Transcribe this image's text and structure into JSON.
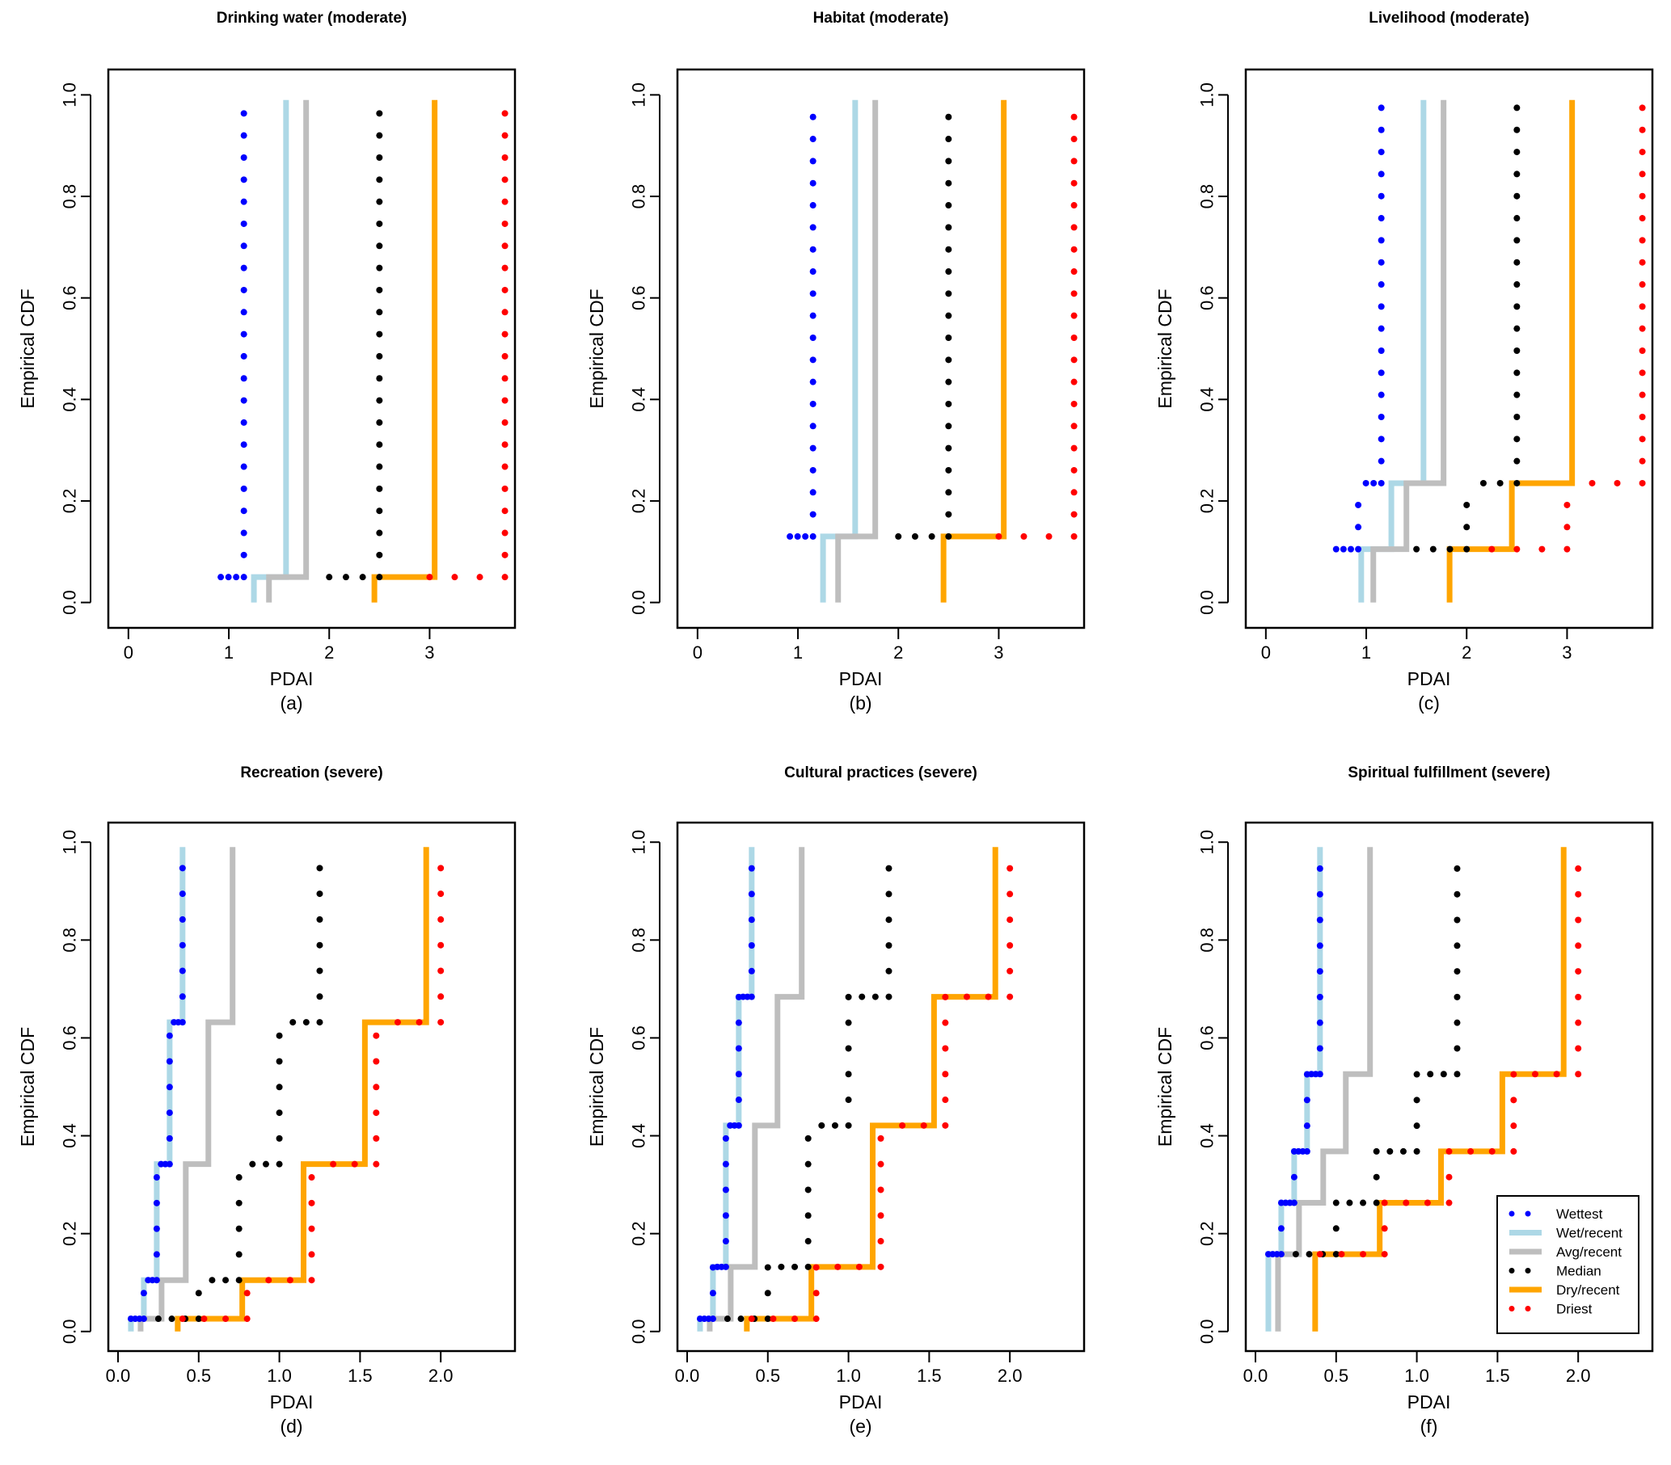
{
  "chart_data": {
    "type": "line",
    "subtype": "step-ecdf-multi-panel",
    "legend": {
      "placement": "bottom-right of panel (f)",
      "entries": [
        {
          "name": "Wettest",
          "style": "dotted",
          "color": "#0000ff"
        },
        {
          "name": "Wet/recent",
          "style": "solid",
          "color": "#add8e6"
        },
        {
          "name": "Avg/recent",
          "style": "solid",
          "color": "#bebebe"
        },
        {
          "name": "Median",
          "style": "dotted",
          "color": "#000000"
        },
        {
          "name": "Dry/recent",
          "style": "solid",
          "color": "#ffa500"
        },
        {
          "name": "Driest",
          "style": "dotted",
          "color": "#ff0000"
        }
      ]
    },
    "panels": [
      {
        "id": "a",
        "title": "Drinking water (moderate)",
        "label": "(a)",
        "xlabel": "PDAI",
        "ylabel": "Empirical CDF",
        "xlim": [
          -0.2,
          3.85
        ],
        "ylim": [
          -0.05,
          1.05
        ],
        "xticks": [
          "0",
          "1",
          "2",
          "3"
        ],
        "xtick_values": [
          0,
          1,
          2,
          3
        ],
        "yticks": [
          "0.0",
          "0.2",
          "0.4",
          "0.6",
          "0.8",
          "1.0"
        ],
        "ytick_values": [
          0,
          0.2,
          0.4,
          0.6,
          0.8,
          1.0
        ],
        "series": {
          "Wettest": [
            [
              0.92,
              0.05
            ],
            [
              1.15,
              1.0
            ]
          ],
          "Wet/recent": [
            [
              1.25,
              0.05
            ],
            [
              1.57,
              1.0
            ]
          ],
          "Avg/recent": [
            [
              1.4,
              0.05
            ],
            [
              1.77,
              1.0
            ]
          ],
          "Median": [
            [
              2.0,
              0.05
            ],
            [
              2.5,
              1.0
            ]
          ],
          "Dry/recent": [
            [
              2.45,
              0.05
            ],
            [
              3.05,
              1.0
            ]
          ],
          "Driest": [
            [
              3.0,
              0.05
            ],
            [
              3.75,
              1.0
            ]
          ]
        }
      },
      {
        "id": "b",
        "title": "Habitat (moderate)",
        "label": "(b)",
        "xlabel": "PDAI",
        "ylabel": "Empirical CDF",
        "xlim": [
          -0.2,
          3.85
        ],
        "ylim": [
          -0.05,
          1.05
        ],
        "xticks": [
          "0",
          "1",
          "2",
          "3"
        ],
        "xtick_values": [
          0,
          1,
          2,
          3
        ],
        "yticks": [
          "0.0",
          "0.2",
          "0.4",
          "0.6",
          "0.8",
          "1.0"
        ],
        "ytick_values": [
          0,
          0.2,
          0.4,
          0.6,
          0.8,
          1.0
        ],
        "series": {
          "Wettest": [
            [
              0.92,
              0.13
            ],
            [
              1.15,
              1.0
            ]
          ],
          "Wet/recent": [
            [
              1.25,
              0.13
            ],
            [
              1.57,
              1.0
            ]
          ],
          "Avg/recent": [
            [
              1.4,
              0.13
            ],
            [
              1.77,
              1.0
            ]
          ],
          "Median": [
            [
              2.0,
              0.13
            ],
            [
              2.5,
              1.0
            ]
          ],
          "Dry/recent": [
            [
              2.45,
              0.13
            ],
            [
              3.05,
              1.0
            ]
          ],
          "Driest": [
            [
              3.0,
              0.13
            ],
            [
              3.75,
              1.0
            ]
          ]
        }
      },
      {
        "id": "c",
        "title": "Livelihood (moderate)",
        "label": "(c)",
        "xlabel": "PDAI",
        "ylabel": "Empirical CDF",
        "xlim": [
          -0.2,
          3.85
        ],
        "ylim": [
          -0.05,
          1.05
        ],
        "xticks": [
          "0",
          "1",
          "2",
          "3"
        ],
        "xtick_values": [
          0,
          1,
          2,
          3
        ],
        "yticks": [
          "0.0",
          "0.2",
          "0.4",
          "0.6",
          "0.8",
          "1.0"
        ],
        "ytick_values": [
          0,
          0.2,
          0.4,
          0.6,
          0.8,
          1.0
        ],
        "series": {
          "Wettest": [
            [
              0.7,
              0.105
            ],
            [
              0.92,
              0.235
            ],
            [
              1.15,
              1.0
            ]
          ],
          "Wet/recent": [
            [
              0.95,
              0.105
            ],
            [
              1.25,
              0.235
            ],
            [
              1.57,
              1.0
            ]
          ],
          "Avg/recent": [
            [
              1.07,
              0.105
            ],
            [
              1.4,
              0.235
            ],
            [
              1.77,
              1.0
            ]
          ],
          "Median": [
            [
              1.5,
              0.105
            ],
            [
              2.0,
              0.235
            ],
            [
              2.5,
              1.0
            ]
          ],
          "Dry/recent": [
            [
              1.83,
              0.105
            ],
            [
              2.45,
              0.235
            ],
            [
              3.05,
              1.0
            ]
          ],
          "Driest": [
            [
              2.25,
              0.105
            ],
            [
              3.0,
              0.235
            ],
            [
              3.75,
              1.0
            ]
          ]
        }
      },
      {
        "id": "d",
        "title": "Recreation (severe)",
        "label": "(d)",
        "xlabel": "PDAI",
        "ylabel": "Empirical CDF",
        "xlim": [
          -0.06,
          2.46
        ],
        "ylim": [
          -0.04,
          1.04
        ],
        "xticks": [
          "0.0",
          "0.5",
          "1.0",
          "1.5",
          "2.0"
        ],
        "xtick_values": [
          0,
          0.5,
          1.0,
          1.5,
          2.0
        ],
        "yticks": [
          "0.0",
          "0.2",
          "0.4",
          "0.6",
          "0.8",
          "1.0"
        ],
        "ytick_values": [
          0,
          0.2,
          0.4,
          0.6,
          0.8,
          1.0
        ],
        "series": {
          "Wettest": [
            [
              0.08,
              0.026
            ],
            [
              0.16,
              0.105
            ],
            [
              0.24,
              0.342
            ],
            [
              0.32,
              0.632
            ],
            [
              0.4,
              1.0
            ]
          ],
          "Wet/recent": [
            [
              0.08,
              0.026
            ],
            [
              0.16,
              0.105
            ],
            [
              0.24,
              0.342
            ],
            [
              0.32,
              0.632
            ],
            [
              0.4,
              1.0
            ]
          ],
          "Avg/recent": [
            [
              0.14,
              0.026
            ],
            [
              0.27,
              0.105
            ],
            [
              0.42,
              0.342
            ],
            [
              0.56,
              0.632
            ],
            [
              0.71,
              1.0
            ]
          ],
          "Median": [
            [
              0.25,
              0.026
            ],
            [
              0.5,
              0.105
            ],
            [
              0.75,
              0.342
            ],
            [
              1.0,
              0.632
            ],
            [
              1.25,
              1.0
            ]
          ],
          "Dry/recent": [
            [
              0.37,
              0.026
            ],
            [
              0.77,
              0.105
            ],
            [
              1.15,
              0.342
            ],
            [
              1.53,
              0.632
            ],
            [
              1.91,
              1.0
            ]
          ],
          "Driest": [
            [
              0.4,
              0.026
            ],
            [
              0.8,
              0.105
            ],
            [
              1.2,
              0.342
            ],
            [
              1.6,
              0.632
            ],
            [
              2.0,
              1.0
            ]
          ]
        }
      },
      {
        "id": "e",
        "title": "Cultural practices (severe)",
        "label": "(e)",
        "xlabel": "PDAI",
        "ylabel": "Empirical CDF",
        "xlim": [
          -0.06,
          2.46
        ],
        "ylim": [
          -0.04,
          1.04
        ],
        "xticks": [
          "0.0",
          "0.5",
          "1.0",
          "1.5",
          "2.0"
        ],
        "xtick_values": [
          0,
          0.5,
          1.0,
          1.5,
          2.0
        ],
        "yticks": [
          "0.0",
          "0.2",
          "0.4",
          "0.6",
          "0.8",
          "1.0"
        ],
        "ytick_values": [
          0,
          0.2,
          0.4,
          0.6,
          0.8,
          1.0
        ],
        "series": {
          "Wettest": [
            [
              0.08,
              0.026
            ],
            [
              0.16,
              0.132
            ],
            [
              0.24,
              0.421
            ],
            [
              0.32,
              0.684
            ],
            [
              0.4,
              1.0
            ]
          ],
          "Wet/recent": [
            [
              0.08,
              0.026
            ],
            [
              0.16,
              0.132
            ],
            [
              0.24,
              0.421
            ],
            [
              0.32,
              0.684
            ],
            [
              0.4,
              1.0
            ]
          ],
          "Avg/recent": [
            [
              0.14,
              0.026
            ],
            [
              0.27,
              0.132
            ],
            [
              0.42,
              0.421
            ],
            [
              0.56,
              0.684
            ],
            [
              0.71,
              1.0
            ]
          ],
          "Median": [
            [
              0.25,
              0.026
            ],
            [
              0.5,
              0.132
            ],
            [
              0.75,
              0.421
            ],
            [
              1.0,
              0.684
            ],
            [
              1.25,
              1.0
            ]
          ],
          "Dry/recent": [
            [
              0.37,
              0.026
            ],
            [
              0.77,
              0.132
            ],
            [
              1.15,
              0.421
            ],
            [
              1.53,
              0.684
            ],
            [
              1.91,
              1.0
            ]
          ],
          "Driest": [
            [
              0.4,
              0.026
            ],
            [
              0.8,
              0.132
            ],
            [
              1.2,
              0.421
            ],
            [
              1.6,
              0.684
            ],
            [
              2.0,
              1.0
            ]
          ]
        }
      },
      {
        "id": "f",
        "title": "Spiritual fulfillment (severe)",
        "label": "(f)",
        "xlabel": "PDAI",
        "ylabel": "Empirical CDF",
        "xlim": [
          -0.06,
          2.46
        ],
        "ylim": [
          -0.04,
          1.04
        ],
        "xticks": [
          "0.0",
          "0.5",
          "1.0",
          "1.5",
          "2.0"
        ],
        "xtick_values": [
          0,
          0.5,
          1.0,
          1.5,
          2.0
        ],
        "yticks": [
          "0.0",
          "0.2",
          "0.4",
          "0.6",
          "0.8",
          "1.0"
        ],
        "ytick_values": [
          0,
          0.2,
          0.4,
          0.6,
          0.8,
          1.0
        ],
        "series": {
          "Wettest": [
            [
              0.08,
              0.158
            ],
            [
              0.16,
              0.263
            ],
            [
              0.24,
              0.368
            ],
            [
              0.32,
              0.526
            ],
            [
              0.4,
              1.0
            ]
          ],
          "Wet/recent": [
            [
              0.08,
              0.158
            ],
            [
              0.16,
              0.263
            ],
            [
              0.24,
              0.368
            ],
            [
              0.32,
              0.526
            ],
            [
              0.4,
              1.0
            ]
          ],
          "Avg/recent": [
            [
              0.14,
              0.158
            ],
            [
              0.27,
              0.263
            ],
            [
              0.42,
              0.368
            ],
            [
              0.56,
              0.526
            ],
            [
              0.71,
              1.0
            ]
          ],
          "Median": [
            [
              0.25,
              0.158
            ],
            [
              0.5,
              0.263
            ],
            [
              0.75,
              0.368
            ],
            [
              1.0,
              0.526
            ],
            [
              1.25,
              1.0
            ]
          ],
          "Dry/recent": [
            [
              0.37,
              0.158
            ],
            [
              0.77,
              0.263
            ],
            [
              1.15,
              0.368
            ],
            [
              1.53,
              0.526
            ],
            [
              1.91,
              1.0
            ]
          ],
          "Driest": [
            [
              0.4,
              0.158
            ],
            [
              0.8,
              0.263
            ],
            [
              1.2,
              0.368
            ],
            [
              1.6,
              0.526
            ],
            [
              2.0,
              1.0
            ]
          ]
        }
      }
    ]
  }
}
